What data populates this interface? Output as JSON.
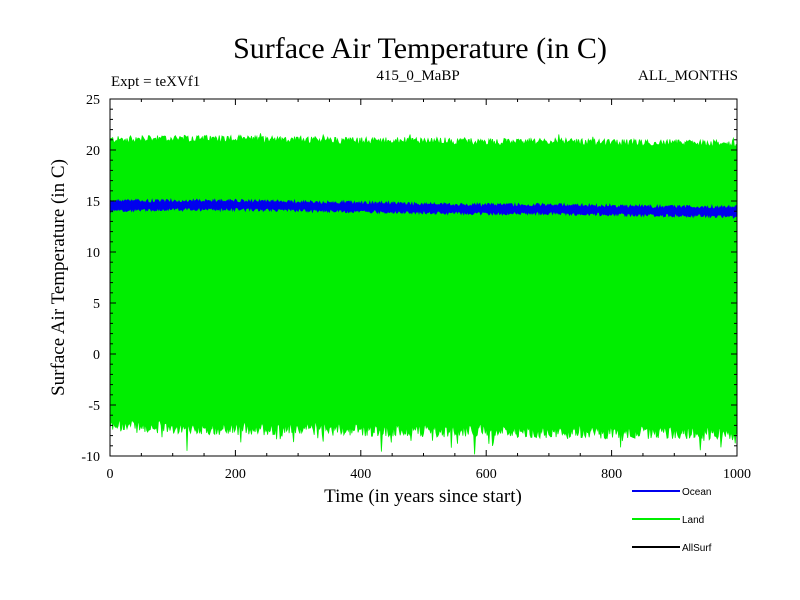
{
  "chart_data": {
    "type": "line",
    "title": "Surface Air Temperature (in C)",
    "subtitle_left": "Expt = teXVf1",
    "subtitle_center": "415_0_MaBP",
    "subtitle_right": "ALL_MONTHS",
    "xlabel": "Time (in years since start)",
    "ylabel": "Surface Air Temperature (in C)",
    "xlim": [
      0,
      1000
    ],
    "ylim": [
      -10,
      25
    ],
    "x_ticks": [
      0,
      200,
      400,
      600,
      800,
      1000
    ],
    "y_ticks": [
      -10,
      -5,
      0,
      5,
      10,
      15,
      20,
      25
    ],
    "grid": false,
    "legend_position": "bottom-right",
    "series": [
      {
        "name": "Land",
        "color": "#00ee00",
        "style": "monthly-envelope",
        "x": [
          0,
          100,
          200,
          300,
          400,
          500,
          600,
          700,
          800,
          900,
          1000
        ],
        "upper": [
          21.0,
          21.1,
          21.1,
          21.0,
          20.9,
          20.9,
          20.8,
          20.8,
          20.7,
          20.7,
          20.6
        ],
        "lower": [
          -7.0,
          -7.2,
          -7.3,
          -7.3,
          -7.4,
          -7.5,
          -7.5,
          -7.6,
          -7.7,
          -7.7,
          -7.8
        ]
      },
      {
        "name": "Ocean",
        "color": "#0000ee",
        "style": "monthly-envelope",
        "x": [
          0,
          100,
          200,
          300,
          400,
          500,
          600,
          700,
          800,
          900,
          1000
        ],
        "upper": [
          15.0,
          15.0,
          15.0,
          14.9,
          14.8,
          14.7,
          14.6,
          14.6,
          14.5,
          14.4,
          14.4
        ],
        "lower": [
          14.1,
          14.2,
          14.2,
          14.1,
          14.0,
          13.9,
          13.8,
          13.8,
          13.7,
          13.6,
          13.5
        ]
      },
      {
        "name": "AllSurf",
        "color": "#000000",
        "style": "line",
        "x": [],
        "values": []
      }
    ],
    "legend_order": [
      "Ocean",
      "Land",
      "AllSurf"
    ]
  }
}
